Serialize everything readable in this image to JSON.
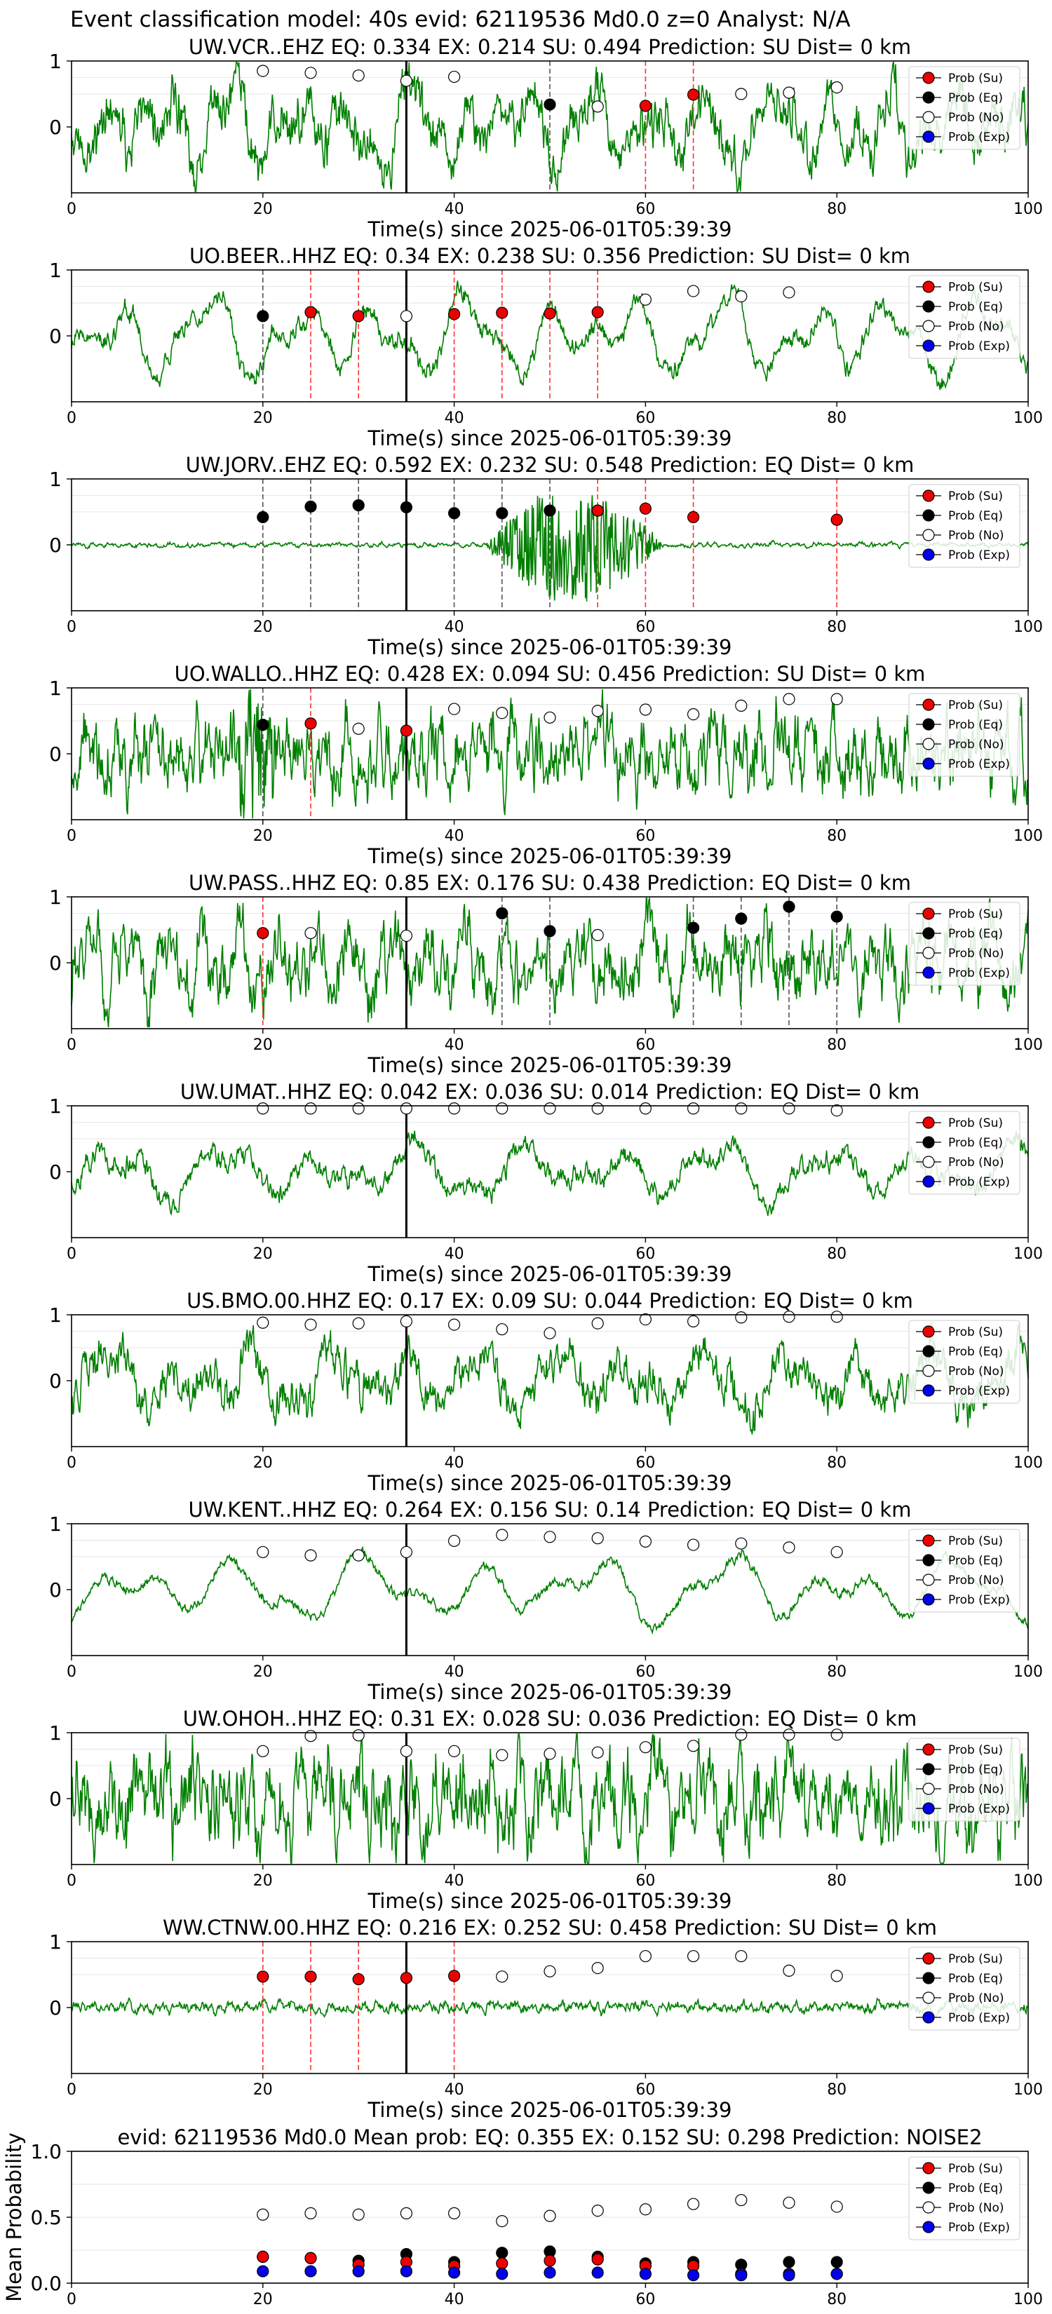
{
  "suptitle": "Event classification model: 40s evid: 62119536 Md0.0 z=0 Analyst: N/A",
  "legend_labels": [
    "Prob (Su)",
    "Prob (Eq)",
    "Prob (No)",
    "Prob (Exp)"
  ],
  "colors": {
    "su": "#ee0000",
    "eq": "#000000",
    "no": "#ffffff",
    "exp": "#0000ee",
    "trace": "#007f00",
    "su_line": "#ff3030",
    "eq_line": "#555555"
  },
  "chart_data": [
    {
      "type": "line",
      "title": "UW.VCR..EHZ   EQ: 0.334  EX: 0.214  SU: 0.494   Prediction: SU    Dist= 0 km",
      "xlabel": "Time(s) since 2025-06-01T05:39:39",
      "xlim": [
        0,
        100
      ],
      "ylim": [
        -1,
        1
      ],
      "xticks": [
        0,
        20,
        40,
        60,
        80,
        100
      ],
      "yticks": [
        0,
        1
      ],
      "event_line_x": 35,
      "series": [
        {
          "name": "Prob (Su)",
          "x": [
            60,
            65
          ],
          "y": [
            0.32,
            0.49
          ]
        },
        {
          "name": "Prob (Eq)",
          "x": [
            50
          ],
          "y": [
            0.34
          ]
        },
        {
          "name": "Prob (No)",
          "x": [
            20,
            25,
            30,
            35,
            40,
            55,
            70,
            75,
            80
          ],
          "y": [
            0.85,
            0.82,
            0.78,
            0.7,
            0.76,
            0.31,
            0.5,
            0.52,
            0.6
          ]
        },
        {
          "name": "Prob (Exp)",
          "x": [],
          "y": []
        }
      ],
      "vlines_su": [
        60,
        65
      ],
      "vlines_eq": [
        50
      ],
      "waveform": {
        "amp": 0.55,
        "freq": 0.5,
        "noise": 0.25
      }
    },
    {
      "type": "line",
      "title": "UO.BEER..HHZ   EQ: 0.34  EX: 0.238  SU: 0.356   Prediction: SU    Dist= 0 km",
      "xlabel": "Time(s) since 2025-06-01T05:39:39",
      "xlim": [
        0,
        100
      ],
      "ylim": [
        -1,
        1
      ],
      "xticks": [
        0,
        20,
        40,
        60,
        80,
        100
      ],
      "yticks": [
        0,
        1
      ],
      "event_line_x": 35,
      "series": [
        {
          "name": "Prob (Su)",
          "x": [
            25,
            30,
            40,
            45,
            50,
            55
          ],
          "y": [
            0.36,
            0.3,
            0.33,
            0.35,
            0.34,
            0.36
          ]
        },
        {
          "name": "Prob (Eq)",
          "x": [
            20
          ],
          "y": [
            0.3
          ]
        },
        {
          "name": "Prob (No)",
          "x": [
            35,
            60,
            65,
            70,
            75
          ],
          "y": [
            0.3,
            0.55,
            0.68,
            0.6,
            0.66
          ]
        },
        {
          "name": "Prob (Exp)",
          "x": [],
          "y": []
        }
      ],
      "vlines_su": [
        25,
        30,
        40,
        45,
        50,
        55
      ],
      "vlines_eq": [
        20
      ],
      "waveform": {
        "amp": 0.6,
        "freq": 0.35,
        "noise": 0.1
      }
    },
    {
      "type": "line",
      "title": "UW.JORV..EHZ   EQ: 0.592  EX: 0.232  SU: 0.548   Prediction: EQ    Dist= 0 km",
      "xlabel": "Time(s) since 2025-06-01T05:39:39",
      "xlim": [
        0,
        100
      ],
      "ylim": [
        -1,
        1
      ],
      "xticks": [
        0,
        20,
        40,
        60,
        80,
        100
      ],
      "yticks": [
        0,
        1
      ],
      "event_line_x": 35,
      "series": [
        {
          "name": "Prob (Su)",
          "x": [
            55,
            60,
            65,
            80
          ],
          "y": [
            0.52,
            0.55,
            0.42,
            0.38
          ]
        },
        {
          "name": "Prob (Eq)",
          "x": [
            20,
            25,
            30,
            35,
            40,
            45,
            50
          ],
          "y": [
            0.42,
            0.58,
            0.6,
            0.57,
            0.48,
            0.48,
            0.52
          ]
        },
        {
          "name": "Prob (No)",
          "x": [],
          "y": []
        },
        {
          "name": "Prob (Exp)",
          "x": [],
          "y": []
        }
      ],
      "vlines_su": [
        55,
        60,
        65,
        80
      ],
      "vlines_eq": [
        20,
        25,
        30,
        40,
        45,
        50
      ],
      "waveform": {
        "amp": 0.02,
        "freq": 2.0,
        "noise": 0.02,
        "burst": [
          43,
          62,
          0.9
        ]
      }
    },
    {
      "type": "line",
      "title": "UO.WALLO..HHZ   EQ: 0.428  EX: 0.094  SU: 0.456   Prediction: SU    Dist= 0 km",
      "xlabel": "Time(s) since 2025-06-01T05:39:39",
      "xlim": [
        0,
        100
      ],
      "ylim": [
        -1,
        1
      ],
      "xticks": [
        0,
        20,
        40,
        60,
        80,
        100
      ],
      "yticks": [
        0,
        1
      ],
      "event_line_x": 35,
      "series": [
        {
          "name": "Prob (Su)",
          "x": [
            25,
            35
          ],
          "y": [
            0.46,
            0.35
          ]
        },
        {
          "name": "Prob (Eq)",
          "x": [
            20
          ],
          "y": [
            0.44
          ]
        },
        {
          "name": "Prob (No)",
          "x": [
            30,
            40,
            45,
            50,
            55,
            60,
            65,
            70,
            75,
            80
          ],
          "y": [
            0.38,
            0.68,
            0.62,
            0.55,
            0.65,
            0.67,
            0.6,
            0.73,
            0.83,
            0.83
          ]
        },
        {
          "name": "Prob (Exp)",
          "x": [],
          "y": []
        }
      ],
      "vlines_su": [
        25
      ],
      "vlines_eq": [
        20
      ],
      "waveform": {
        "amp": 0.25,
        "freq": 1.6,
        "noise": 0.35,
        "burst": [
          16,
          22,
          0.9
        ]
      }
    },
    {
      "type": "line",
      "title": "UW.PASS..HHZ   EQ: 0.85  EX: 0.176  SU: 0.438   Prediction: EQ    Dist= 0 km",
      "xlabel": "Time(s) since 2025-06-01T05:39:39",
      "xlim": [
        0,
        100
      ],
      "ylim": [
        -1,
        1
      ],
      "xticks": [
        0,
        20,
        40,
        60,
        80,
        100
      ],
      "yticks": [
        0,
        1
      ],
      "event_line_x": 35,
      "series": [
        {
          "name": "Prob (Su)",
          "x": [
            20
          ],
          "y": [
            0.45
          ]
        },
        {
          "name": "Prob (Eq)",
          "x": [
            45,
            50,
            65,
            70,
            75,
            80
          ],
          "y": [
            0.75,
            0.48,
            0.53,
            0.67,
            0.85,
            0.7
          ]
        },
        {
          "name": "Prob (No)",
          "x": [
            25,
            35,
            55
          ],
          "y": [
            0.45,
            0.41,
            0.42
          ]
        },
        {
          "name": "Prob (Exp)",
          "x": [],
          "y": []
        }
      ],
      "vlines_su": [
        20
      ],
      "vlines_eq": [
        45,
        50,
        65,
        70,
        75,
        80
      ],
      "waveform": {
        "amp": 0.45,
        "freq": 0.8,
        "noise": 0.3
      }
    },
    {
      "type": "line",
      "title": "UW.UMAT..HHZ   EQ: 0.042  EX: 0.036  SU: 0.014   Prediction: EQ    Dist= 0 km",
      "xlabel": "Time(s) since 2025-06-01T05:39:39",
      "xlim": [
        0,
        100
      ],
      "ylim": [
        -1,
        1
      ],
      "xticks": [
        0,
        20,
        40,
        60,
        80,
        100
      ],
      "yticks": [
        0,
        1
      ],
      "event_line_x": 35,
      "series": [
        {
          "name": "Prob (Su)",
          "x": [],
          "y": []
        },
        {
          "name": "Prob (Eq)",
          "x": [],
          "y": []
        },
        {
          "name": "Prob (No)",
          "x": [
            20,
            25,
            30,
            35,
            40,
            45,
            50,
            55,
            60,
            65,
            70,
            75,
            80
          ],
          "y": [
            0.96,
            0.96,
            0.96,
            0.96,
            0.96,
            0.96,
            0.96,
            0.96,
            0.96,
            0.96,
            0.96,
            0.96,
            0.93
          ]
        },
        {
          "name": "Prob (Exp)",
          "x": [],
          "y": []
        }
      ],
      "vlines_su": [],
      "vlines_eq": [],
      "waveform": {
        "amp": 0.4,
        "freq": 0.3,
        "noise": 0.1
      }
    },
    {
      "type": "line",
      "title": "US.BMO.00.HHZ   EQ: 0.17  EX: 0.09  SU: 0.044   Prediction: EQ    Dist= 0 km",
      "xlabel": "Time(s) since 2025-06-01T05:39:39",
      "xlim": [
        0,
        100
      ],
      "ylim": [
        -1,
        1
      ],
      "xticks": [
        0,
        20,
        40,
        60,
        80,
        100
      ],
      "yticks": [
        0,
        1
      ],
      "event_line_x": 35,
      "series": [
        {
          "name": "Prob (Su)",
          "x": [],
          "y": []
        },
        {
          "name": "Prob (Eq)",
          "x": [],
          "y": []
        },
        {
          "name": "Prob (No)",
          "x": [
            20,
            25,
            30,
            35,
            40,
            45,
            50,
            55,
            60,
            65,
            70,
            75,
            80
          ],
          "y": [
            0.88,
            0.85,
            0.87,
            0.9,
            0.85,
            0.78,
            0.72,
            0.87,
            0.93,
            0.9,
            0.96,
            0.97,
            0.97
          ]
        },
        {
          "name": "Prob (Exp)",
          "x": [],
          "y": []
        }
      ],
      "vlines_su": [],
      "vlines_eq": [],
      "waveform": {
        "amp": 0.45,
        "freq": 0.4,
        "noise": 0.2
      }
    },
    {
      "type": "line",
      "title": "UW.KENT..HHZ   EQ: 0.264  EX: 0.156  SU: 0.14   Prediction: EQ    Dist= 0 km",
      "xlabel": "Time(s) since 2025-06-01T05:39:39",
      "xlim": [
        0,
        100
      ],
      "ylim": [
        -1,
        1
      ],
      "xticks": [
        0,
        20,
        40,
        60,
        80,
        100
      ],
      "yticks": [
        0,
        1
      ],
      "event_line_x": 35,
      "series": [
        {
          "name": "Prob (Su)",
          "x": [],
          "y": []
        },
        {
          "name": "Prob (Eq)",
          "x": [],
          "y": []
        },
        {
          "name": "Prob (No)",
          "x": [
            20,
            25,
            30,
            35,
            40,
            45,
            50,
            55,
            60,
            65,
            70,
            75,
            80
          ],
          "y": [
            0.57,
            0.52,
            0.52,
            0.57,
            0.74,
            0.83,
            0.8,
            0.78,
            0.73,
            0.68,
            0.7,
            0.64,
            0.57
          ]
        },
        {
          "name": "Prob (Exp)",
          "x": [],
          "y": []
        }
      ],
      "vlines_su": [],
      "vlines_eq": [],
      "waveform": {
        "amp": 0.5,
        "freq": 0.25,
        "noise": 0.05
      }
    },
    {
      "type": "line",
      "title": "UW.OHOH..HHZ   EQ: 0.31  EX: 0.028  SU: 0.036   Prediction: EQ    Dist= 0 km",
      "xlabel": "Time(s) since 2025-06-01T05:39:39",
      "xlim": [
        0,
        100
      ],
      "ylim": [
        -1,
        1
      ],
      "xticks": [
        0,
        20,
        40,
        60,
        80,
        100
      ],
      "yticks": [
        0,
        1
      ],
      "event_line_x": 35,
      "series": [
        {
          "name": "Prob (Su)",
          "x": [],
          "y": []
        },
        {
          "name": "Prob (Eq)",
          "x": [],
          "y": []
        },
        {
          "name": "Prob (No)",
          "x": [
            20,
            25,
            30,
            35,
            40,
            45,
            50,
            55,
            60,
            65,
            70,
            75,
            80
          ],
          "y": [
            0.72,
            0.95,
            0.96,
            0.72,
            0.72,
            0.66,
            0.68,
            0.7,
            0.78,
            0.8,
            0.97,
            0.97,
            0.97
          ]
        },
        {
          "name": "Prob (Exp)",
          "x": [],
          "y": []
        }
      ],
      "vlines_su": [],
      "vlines_eq": [],
      "waveform": {
        "amp": 0.4,
        "freq": 1.1,
        "noise": 0.4
      }
    },
    {
      "type": "line",
      "title": "WW.CTNW.00.HHZ   EQ: 0.216  EX: 0.252  SU: 0.458   Prediction: SU    Dist= 0 km",
      "xlabel": "Time(s) since 2025-06-01T05:39:39",
      "xlim": [
        0,
        100
      ],
      "ylim": [
        -1,
        1
      ],
      "xticks": [
        0,
        20,
        40,
        60,
        80,
        100
      ],
      "yticks": [
        0,
        1
      ],
      "event_line_x": 35,
      "series": [
        {
          "name": "Prob (Su)",
          "x": [
            20,
            25,
            30,
            35,
            40
          ],
          "y": [
            0.47,
            0.47,
            0.43,
            0.45,
            0.48
          ]
        },
        {
          "name": "Prob (Eq)",
          "x": [],
          "y": []
        },
        {
          "name": "Prob (No)",
          "x": [
            45,
            50,
            55,
            60,
            65,
            70,
            75,
            80
          ],
          "y": [
            0.47,
            0.55,
            0.6,
            0.78,
            0.78,
            0.78,
            0.56,
            0.48
          ]
        },
        {
          "name": "Prob (Exp)",
          "x": [],
          "y": []
        }
      ],
      "vlines_su": [
        20,
        25,
        30,
        40
      ],
      "vlines_eq": [],
      "waveform": {
        "amp": 0.04,
        "freq": 1.8,
        "noise": 0.05
      }
    },
    {
      "type": "scatter",
      "title": "evid: 62119536   Md0.0   Mean prob:   EQ: 0.355  EX: 0.152  SU: 0.298   Prediction: NOISE2",
      "xlabel": "",
      "ylabel": "Mean Probability",
      "xlim": [
        0,
        100
      ],
      "ylim": [
        0,
        1
      ],
      "xticks": [
        0,
        20,
        40,
        60,
        80,
        100
      ],
      "yticks": [
        0.0,
        0.5,
        1.0
      ],
      "ytick_labels": [
        "0.0",
        "0.5",
        "1.0"
      ],
      "series": [
        {
          "name": "Prob (No)",
          "x": [
            20,
            25,
            30,
            35,
            40,
            45,
            50,
            55,
            60,
            65,
            70,
            75,
            80
          ],
          "y": [
            0.52,
            0.53,
            0.52,
            0.53,
            0.53,
            0.47,
            0.51,
            0.55,
            0.56,
            0.6,
            0.63,
            0.61,
            0.58
          ]
        },
        {
          "name": "Prob (Eq)",
          "x": [
            20,
            25,
            30,
            35,
            40,
            45,
            50,
            55,
            60,
            65,
            70,
            75,
            80
          ],
          "y": [
            0.2,
            0.19,
            0.17,
            0.22,
            0.16,
            0.23,
            0.24,
            0.2,
            0.15,
            0.16,
            0.14,
            0.16,
            0.16
          ]
        },
        {
          "name": "Prob (Su)",
          "x": [
            20,
            25,
            30,
            35,
            40,
            45,
            50,
            55,
            60,
            65,
            70,
            75,
            80
          ],
          "y": [
            0.2,
            0.19,
            0.14,
            0.16,
            0.13,
            0.15,
            0.17,
            0.18,
            0.13,
            0.13,
            0.07,
            0.07,
            0.07
          ]
        },
        {
          "name": "Prob (Exp)",
          "x": [
            20,
            25,
            30,
            35,
            40,
            45,
            50,
            55,
            60,
            65,
            70,
            75,
            80
          ],
          "y": [
            0.09,
            0.09,
            0.09,
            0.09,
            0.08,
            0.07,
            0.08,
            0.08,
            0.07,
            0.06,
            0.06,
            0.06,
            0.07
          ]
        }
      ]
    }
  ]
}
